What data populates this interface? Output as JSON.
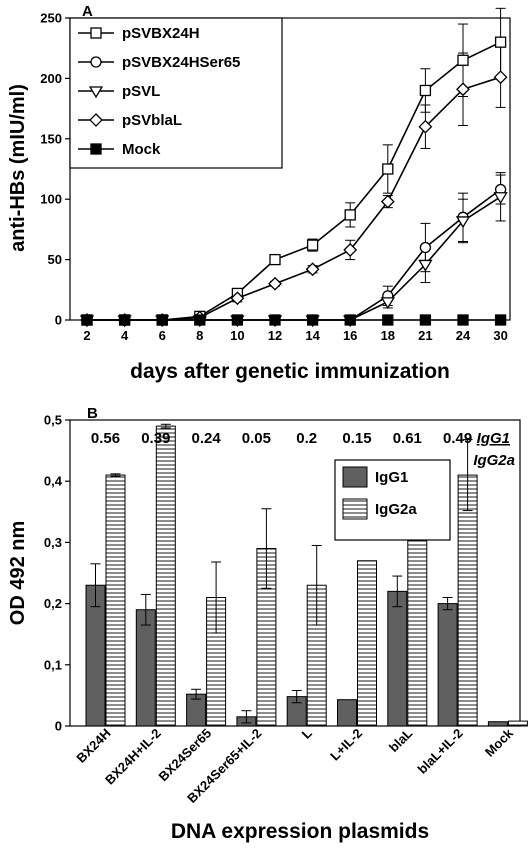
{
  "chart_data": [
    {
      "type": "line",
      "panel_label": "A",
      "xlabel": "days after genetic immunization",
      "ylabel": "anti-HBs (mIU/ml)",
      "x": [
        "2",
        "4",
        "6",
        "8",
        "10",
        "12",
        "14",
        "16",
        "18",
        "21",
        "24",
        "30"
      ],
      "yticks": [
        "0",
        "50",
        "100",
        "150",
        "200",
        "250"
      ],
      "ylim": [
        0,
        250
      ],
      "legend_position": "top-left",
      "series": [
        {
          "name": "pSVBX24H",
          "marker": "open-square",
          "values": [
            0,
            0,
            0,
            3,
            22,
            50,
            62,
            87,
            125,
            190,
            215,
            230
          ],
          "errors": [
            0,
            0,
            0,
            0,
            3,
            2,
            5,
            10,
            20,
            18,
            30,
            28
          ]
        },
        {
          "name": "pSVBX24HSer65",
          "marker": "open-circle",
          "values": [
            0,
            0,
            0,
            0,
            0,
            0,
            0,
            0,
            20,
            60,
            85,
            108
          ],
          "errors": [
            0,
            0,
            0,
            0,
            0,
            0,
            0,
            0,
            8,
            20,
            20,
            12
          ]
        },
        {
          "name": "pSVL",
          "marker": "open-triangle-down",
          "values": [
            0,
            0,
            0,
            0,
            0,
            0,
            0,
            0,
            15,
            46,
            82,
            102
          ],
          "errors": [
            0,
            0,
            0,
            0,
            0,
            0,
            0,
            0,
            5,
            15,
            18,
            20
          ]
        },
        {
          "name": "pSVblaL",
          "marker": "open-diamond",
          "values": [
            0,
            0,
            0,
            2,
            18,
            30,
            42,
            58,
            98,
            160,
            191,
            201
          ],
          "errors": [
            0,
            0,
            0,
            0,
            3,
            2,
            3,
            8,
            5,
            18,
            30,
            25
          ]
        },
        {
          "name": "Mock",
          "marker": "filled-square",
          "values": [
            0,
            0,
            0,
            0,
            0,
            0,
            0,
            0,
            0,
            0,
            0,
            0
          ],
          "errors": [
            0,
            0,
            0,
            0,
            0,
            0,
            0,
            0,
            0,
            0,
            0,
            0
          ]
        }
      ]
    },
    {
      "type": "bar",
      "panel_label": "B",
      "xlabel": "DNA expression plasmids",
      "ylabel": "OD 492 nm",
      "categories": [
        "BX24H",
        "BX24H+IL-2",
        "BX24Ser65",
        "BX24Ser65+IL-2",
        "L",
        "L+IL-2",
        "blaL",
        "blaL+IL-2",
        "Mock"
      ],
      "yticks": [
        "0",
        "0,1",
        "0,2",
        "0,3",
        "0,4",
        "0,5"
      ],
      "ylim": [
        0,
        0.5
      ],
      "legend_position": "top-right",
      "ratio_values": [
        "0.56",
        "0.39",
        "0.24",
        "0.05",
        "0.2",
        "0.15",
        "0.61",
        "0.49",
        ""
      ],
      "ratio_label_top": "IgG1",
      "ratio_label_bottom": "IgG2a",
      "series": [
        {
          "name": "IgG1",
          "fill": "#606060",
          "values": [
            0.23,
            0.19,
            0.052,
            0.015,
            0.048,
            0.043,
            0.22,
            0.2,
            0.007
          ],
          "errors": [
            0.035,
            0.025,
            0.008,
            0.01,
            0.01,
            0,
            0.025,
            0.01,
            0
          ]
        },
        {
          "name": "IgG2a",
          "fill": "horizontal-stripes",
          "values": [
            0.41,
            0.49,
            0.21,
            0.29,
            0.23,
            0.27,
            0.36,
            0.41,
            0.008
          ],
          "errors": [
            0.002,
            0.003,
            0.058,
            0.065,
            0.065,
            0,
            0.003,
            0.058,
            0
          ]
        }
      ]
    }
  ]
}
